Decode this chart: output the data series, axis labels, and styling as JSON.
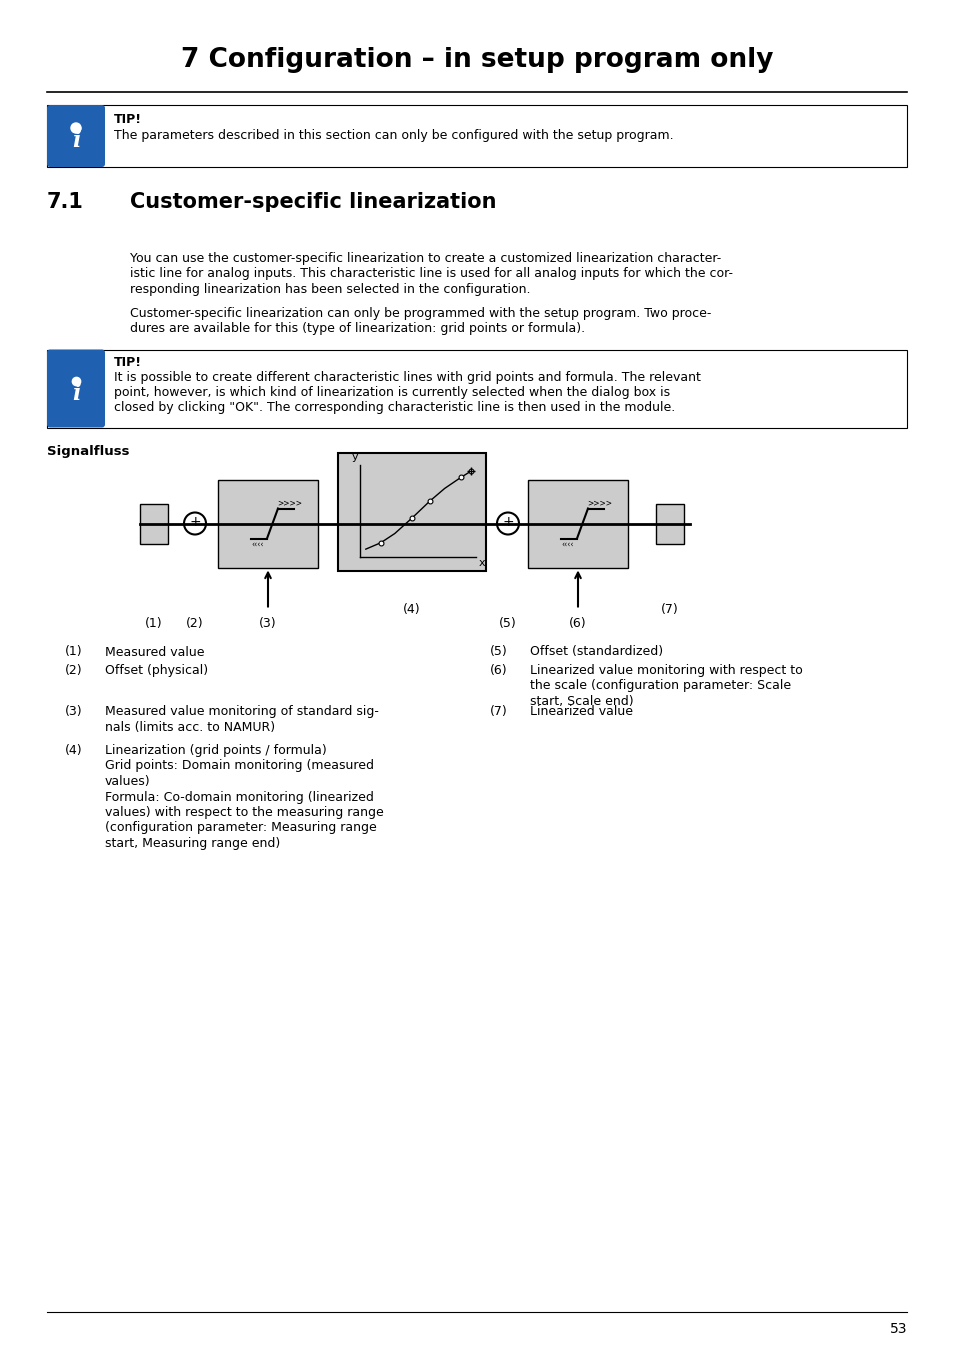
{
  "title": "7 Configuration – in setup program only",
  "section_num": "7.1",
  "section_title": "Customer-specific linearization",
  "tip1_bold": "TIP!",
  "tip1_text": "The parameters described in this section can only be configured with the setup program.",
  "para1_line1": "You can use the customer-specific linearization to create a customized linearization character-",
  "para1_line2": "istic line for analog inputs. This characteristic line is used for all analog inputs for which the cor-",
  "para1_line3": "responding linearization has been selected in the configuration.",
  "para2_line1": "Customer-specific linearization can only be programmed with the setup program. Two proce-",
  "para2_line2": "dures are available for this (type of linearization: grid points or formula).",
  "tip2_bold": "TIP!",
  "tip2_line1": "It is possible to create different characteristic lines with grid points and formula. The relevant",
  "tip2_line2": "point, however, is which kind of linearization is currently selected when the dialog box is",
  "tip2_line3": "closed by clicking \"OK\". The corresponding characteristic line is then used in the module.",
  "signalfluss": "Signalfluss",
  "lbl1": "(1)",
  "lbl2": "(2)",
  "lbl3": "(3)",
  "lbl4": "(4)",
  "lbl5": "(5)",
  "lbl6": "(6)",
  "lbl7": "(7)",
  "desc1": "Measured value",
  "desc2": "Offset (physical)",
  "desc3a": "Measured value monitoring of standard sig-",
  "desc3b": "nals (limits acc. to NAMUR)",
  "desc4": "Linearization (grid points / formula)",
  "desc4a": "Grid points: Domain monitoring (measured",
  "desc4b": "values)",
  "desc4c": "Formula: Co-domain monitoring (linearized",
  "desc4d": "values) with respect to the measuring range",
  "desc4e": "(configuration parameter: Measuring range",
  "desc4f": "start, Measuring range end)",
  "desc5": "Offset (standardized)",
  "desc6a": "Linearized value monitoring with respect to",
  "desc6b": "the scale (configuration parameter: Scale",
  "desc6c": "start, Scale end)",
  "desc7": "Linearized value",
  "page_number": "53",
  "bg_color": "#ffffff",
  "box_bg": "#cccccc",
  "blue_color": "#2060b0",
  "black": "#000000"
}
